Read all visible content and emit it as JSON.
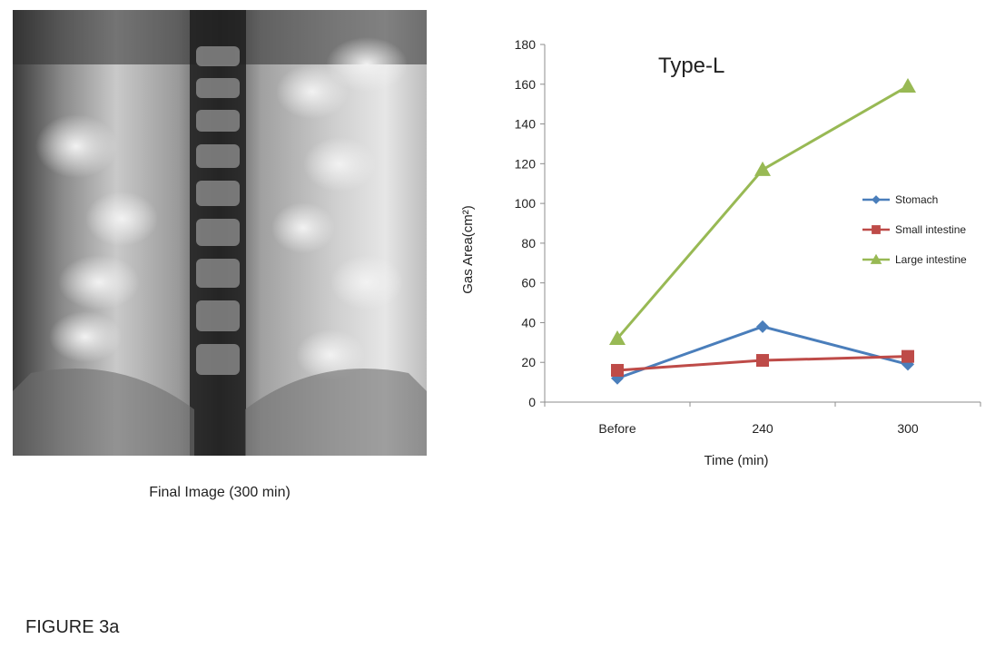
{
  "caption": "Final Image (300 min)",
  "figure_label": "FIGURE 3a",
  "chart_data": {
    "type": "line",
    "title": "Type-L",
    "xlabel": "Time (min)",
    "ylabel": "Gas  Area(cm²)",
    "categories": [
      "Before",
      "240",
      "300"
    ],
    "ylim": [
      0,
      180
    ],
    "yticks": [
      0,
      20,
      40,
      60,
      80,
      100,
      120,
      140,
      160,
      180
    ],
    "grid": false,
    "legend_position": "right",
    "series": [
      {
        "name": "Stomach",
        "values": [
          12,
          38,
          19
        ],
        "color": "#4a7ebb",
        "marker": "diamond"
      },
      {
        "name": "Small intestine",
        "values": [
          16,
          21,
          23
        ],
        "color": "#be4b48",
        "marker": "square"
      },
      {
        "name": "Large intestine",
        "values": [
          32,
          117,
          159
        ],
        "color": "#98b954",
        "marker": "triangle"
      }
    ]
  }
}
